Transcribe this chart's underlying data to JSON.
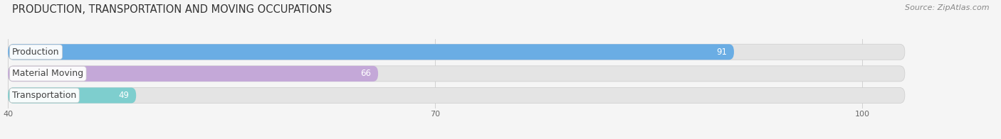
{
  "title": "PRODUCTION, TRANSPORTATION AND MOVING OCCUPATIONS",
  "source_text": "Source: ZipAtlas.com",
  "categories": [
    "Production",
    "Material Moving",
    "Transportation"
  ],
  "values": [
    91,
    66,
    49
  ],
  "bar_colors": [
    "#6aade4",
    "#c4a8d8",
    "#7ecece"
  ],
  "xlim_min": 40,
  "xlim_max": 108,
  "display_xlim_max": 100,
  "xticks": [
    40,
    70,
    100
  ],
  "bg_color": "#f5f5f5",
  "bar_bg_color": "#e4e4e4",
  "bar_height": 0.72,
  "title_fontsize": 10.5,
  "label_fontsize": 9,
  "value_fontsize": 8.5,
  "source_fontsize": 8,
  "tick_fontsize": 8
}
